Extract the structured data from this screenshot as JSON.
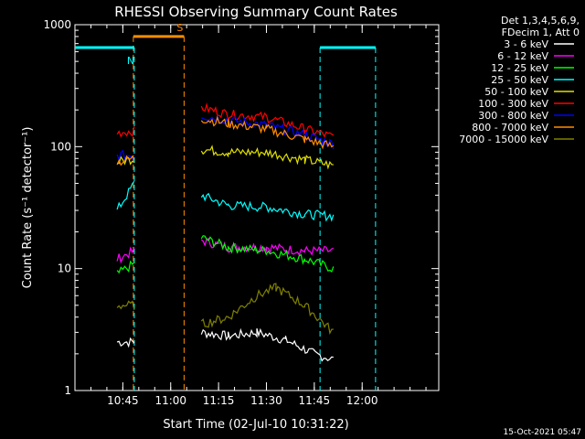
{
  "chart_data": {
    "type": "line",
    "title": "RHESSI Observing Summary Count Rates",
    "xlabel": "Start Time (02-Jul-10 10:31:22)",
    "ylabel": "Count Rate (s⁻¹ detector⁻¹)",
    "yscale": "log",
    "ylim": [
      1,
      1000
    ],
    "yticks": [
      "1",
      "10",
      "100",
      "1000"
    ],
    "xlim_minutes": [
      10.5,
      12.4
    ],
    "xticks": [
      {
        "t": 10.75,
        "label": "10:45"
      },
      {
        "t": 11.0,
        "label": "11:00"
      },
      {
        "t": 11.25,
        "label": "11:15"
      },
      {
        "t": 11.5,
        "label": "11:30"
      },
      {
        "t": 11.75,
        "label": "11:45"
      },
      {
        "t": 12.0,
        "label": "12:00"
      }
    ],
    "legend_header": [
      "Det 1,3,4,5,6,9,",
      "FDecim 1, Att 0"
    ],
    "legend_placement": "right-outside",
    "timestamp": "15-Oct-2021 05:47",
    "series": [
      {
        "name": "3 - 6 keV",
        "color": "#ffffff",
        "segments": [
          [
            [
              10.72,
              2.5
            ],
            [
              10.81,
              2.5
            ]
          ],
          [
            [
              11.16,
              3.0
            ],
            [
              11.3,
              2.8
            ],
            [
              11.45,
              3.0
            ],
            [
              11.6,
              2.6
            ],
            [
              11.75,
              2.0
            ],
            [
              11.85,
              1.8
            ]
          ]
        ]
      },
      {
        "name": "6 - 12 keV",
        "color": "#ff00ff",
        "segments": [
          [
            [
              10.72,
              12
            ],
            [
              10.81,
              14
            ]
          ],
          [
            [
              11.16,
              17
            ],
            [
              11.3,
              15
            ],
            [
              11.5,
              15
            ],
            [
              11.7,
              14
            ],
            [
              11.85,
              14
            ]
          ]
        ]
      },
      {
        "name": "12 - 25 keV",
        "color": "#00ff00",
        "segments": [
          [
            [
              10.72,
              9
            ],
            [
              10.81,
              11
            ]
          ],
          [
            [
              11.16,
              18
            ],
            [
              11.3,
              15
            ],
            [
              11.5,
              14
            ],
            [
              11.7,
              12
            ],
            [
              11.85,
              10
            ]
          ]
        ]
      },
      {
        "name": "25 - 50 keV",
        "color": "#00ffff",
        "segments": [
          [
            [
              10.72,
              30
            ],
            [
              10.81,
              50
            ]
          ],
          [
            [
              11.16,
              40
            ],
            [
              11.3,
              33
            ],
            [
              11.5,
              32
            ],
            [
              11.7,
              28
            ],
            [
              11.85,
              27
            ]
          ]
        ]
      },
      {
        "name": "50 - 100 keV",
        "color": "#e0e000",
        "segments": [
          [
            [
              10.72,
              75
            ],
            [
              10.81,
              80
            ]
          ],
          [
            [
              11.16,
              95
            ],
            [
              11.3,
              90
            ],
            [
              11.5,
              90
            ],
            [
              11.7,
              78
            ],
            [
              11.85,
              70
            ]
          ]
        ]
      },
      {
        "name": "100 - 300 keV",
        "color": "#ff0000",
        "segments": [
          [
            [
              10.72,
              130
            ],
            [
              10.81,
              135
            ]
          ],
          [
            [
              11.16,
              210
            ],
            [
              11.3,
              185
            ],
            [
              11.5,
              175
            ],
            [
              11.7,
              140
            ],
            [
              11.85,
              120
            ]
          ]
        ]
      },
      {
        "name": "300 - 800 keV",
        "color": "#0000ff",
        "segments": [
          [
            [
              10.72,
              85
            ],
            [
              10.81,
              85
            ]
          ],
          [
            [
              11.16,
              180
            ],
            [
              11.3,
              165
            ],
            [
              11.5,
              150
            ],
            [
              11.7,
              125
            ],
            [
              11.85,
              105
            ]
          ]
        ]
      },
      {
        "name": "800 - 7000 keV",
        "color": "#ff8c00",
        "segments": [
          [
            [
              10.72,
              75
            ],
            [
              10.81,
              80
            ]
          ],
          [
            [
              11.16,
              170
            ],
            [
              11.3,
              155
            ],
            [
              11.5,
              140
            ],
            [
              11.7,
              115
            ],
            [
              11.85,
              100
            ]
          ]
        ]
      },
      {
        "name": "7000 - 15000 keV",
        "color": "#808000",
        "segments": [
          [
            [
              10.72,
              5
            ],
            [
              10.81,
              5
            ]
          ],
          [
            [
              11.16,
              3.5
            ],
            [
              11.3,
              4
            ],
            [
              11.45,
              6
            ],
            [
              11.55,
              7
            ],
            [
              11.7,
              5
            ],
            [
              11.85,
              3
            ]
          ]
        ]
      }
    ],
    "flags": [
      {
        "label": "S",
        "color": "#ff8c00",
        "t_start": 10.805,
        "t_end": 11.07,
        "value": 800
      },
      {
        "label": "N",
        "color": "#00ffff",
        "t_start": 10.5,
        "t_end": 10.81,
        "value": 650
      },
      {
        "label": "",
        "color": "#00ffff",
        "t_start": 11.78,
        "t_end": 12.07,
        "value": 650
      }
    ]
  }
}
